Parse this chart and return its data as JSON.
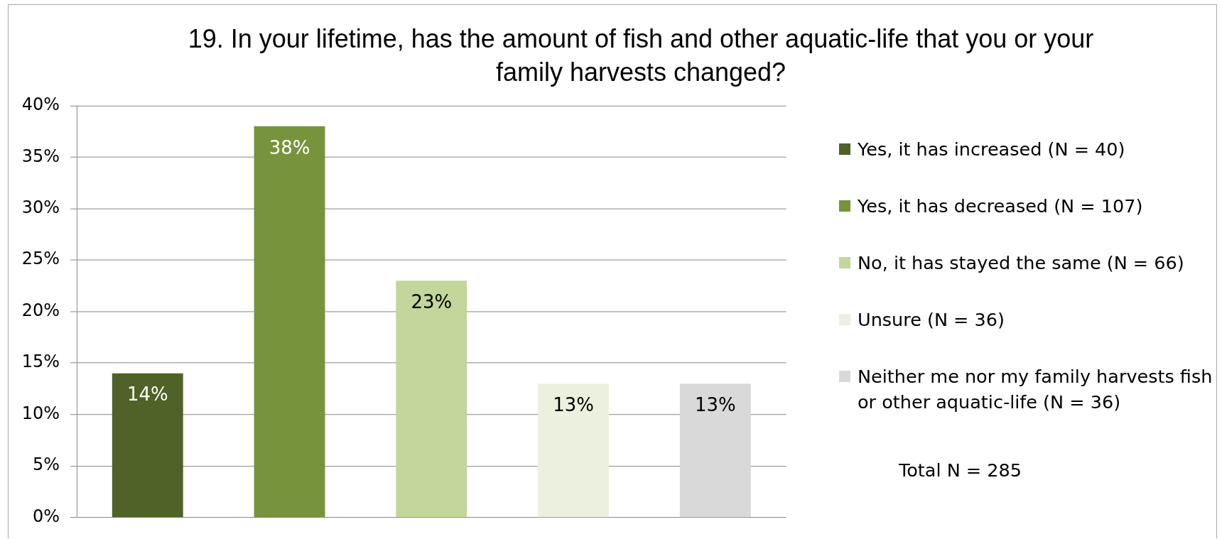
{
  "chart_data": {
    "type": "bar",
    "title": "19. In your lifetime, has the amount of fish and other aquatic-life that you or your family harvests changed?",
    "categories": [
      null
    ],
    "series": [
      {
        "name": "Yes, it has increased (N = 40)",
        "color": "#4f6228",
        "values": [
          14
        ],
        "value_labels": [
          "14%"
        ]
      },
      {
        "name": "Yes, it has decreased (N = 107)",
        "color": "#77933c",
        "values": [
          38
        ],
        "value_labels": [
          "38%"
        ]
      },
      {
        "name": "No, it has stayed the same (N = 66)",
        "color": "#c3d69b",
        "values": [
          23
        ],
        "value_labels": [
          "23%"
        ]
      },
      {
        "name": "Unsure (N = 36)",
        "color": "#ebf1de",
        "values": [
          13
        ],
        "value_labels": [
          "13%"
        ]
      },
      {
        "name": "Neither me nor my family harvests fish or other aquatic-life (N = 36)",
        "color": "#d9d9d9",
        "values": [
          13
        ],
        "value_labels": [
          "13%"
        ]
      }
    ],
    "ylim": [
      0,
      40
    ],
    "yticks": [
      {
        "value": 0,
        "label": "0%"
      },
      {
        "value": 5,
        "label": "5%"
      },
      {
        "value": 10,
        "label": "10%"
      },
      {
        "value": 15,
        "label": "15%"
      },
      {
        "value": 20,
        "label": "20%"
      },
      {
        "value": 25,
        "label": "25%"
      },
      {
        "value": 30,
        "label": "30%"
      },
      {
        "value": 35,
        "label": "35%"
      },
      {
        "value": 40,
        "label": "40%"
      }
    ],
    "grid": "y",
    "legend": "right",
    "annotations": [
      "Total N = 285"
    ]
  }
}
